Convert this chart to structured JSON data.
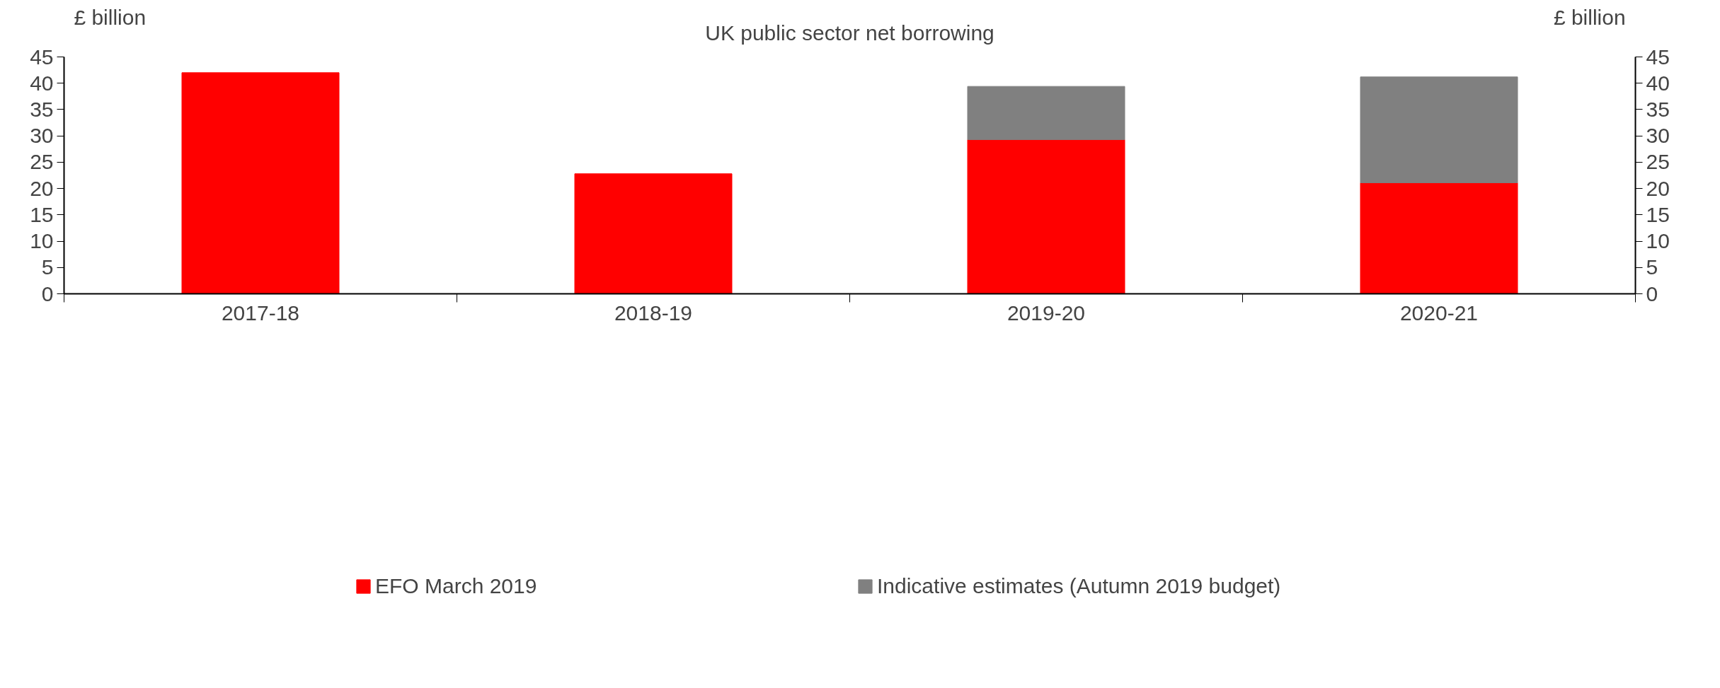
{
  "chart_data": {
    "type": "bar",
    "title": "UK public sector net borrowing",
    "ylabel": "£ billion",
    "y2label": "£ billion",
    "categories": [
      "2017-18",
      "2018-19",
      "2019-20",
      "2020-21"
    ],
    "stacked": true,
    "series": [
      {
        "name": "EFO March 2019",
        "color": "#ff0000",
        "values": [
          42.0,
          22.8,
          29.3,
          21.1
        ]
      },
      {
        "name": "Indicative estimates (Autumn 2019 budget)",
        "color": "#808080",
        "values": [
          null,
          null,
          10.1,
          20.1
        ]
      }
    ],
    "ylim": [
      0,
      45
    ],
    "yticks": [
      0,
      5,
      10,
      15,
      20,
      25,
      30,
      35,
      40,
      45
    ],
    "y2lim": [
      0,
      45
    ],
    "y2ticks": [
      0,
      5,
      10,
      15,
      20,
      25,
      30,
      35,
      40,
      45
    ],
    "grid": false,
    "legend": "bottom"
  }
}
